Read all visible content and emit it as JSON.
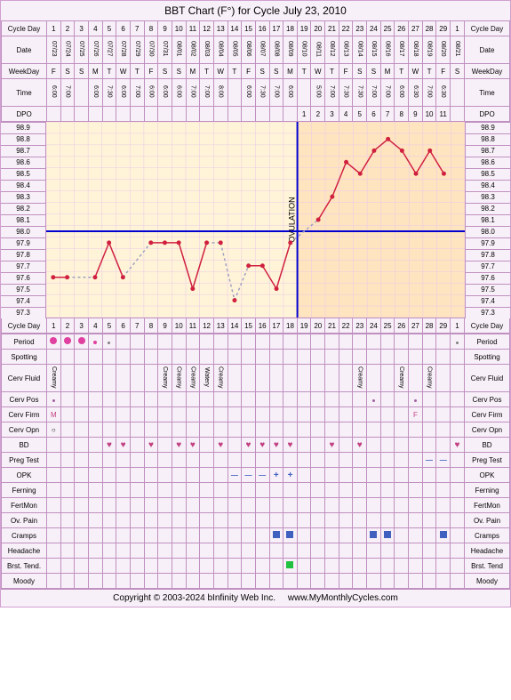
{
  "title": "BBT Chart (F°) for Cycle July 23, 2010",
  "footer_left": "Copyright © 2003-2024 bInfinity Web Inc.",
  "footer_right": "www.MyMonthlyCycles.com",
  "labels": {
    "cycle_day": "Cycle Day",
    "date": "Date",
    "weekday": "WeekDay",
    "time": "Time",
    "dpo": "DPO",
    "period": "Period",
    "spotting": "Spotting",
    "cerv_fluid": "Cerv Fluid",
    "cerv_pos": "Cerv Pos",
    "cerv_firm": "Cerv Firm",
    "cerv_opn": "Cerv Opn",
    "bd": "BD",
    "preg_test": "Preg Test",
    "opk": "OPK",
    "ferning": "Ferning",
    "fertmon": "FertMon",
    "ov_pain": "Ov. Pain",
    "cramps": "Cramps",
    "headache": "Headache",
    "brst_tend": "Brst. Tend.",
    "brst_tend_r": "Brst. Tend",
    "moody": "Moody"
  },
  "days": 30,
  "cycle_days": [
    1,
    2,
    3,
    4,
    5,
    6,
    7,
    8,
    9,
    10,
    11,
    12,
    13,
    14,
    15,
    16,
    17,
    18,
    19,
    20,
    21,
    22,
    23,
    24,
    25,
    26,
    27,
    28,
    29,
    1
  ],
  "dates": [
    "07/23",
    "07/24",
    "07/25",
    "07/26",
    "07/27",
    "07/28",
    "07/29",
    "07/30",
    "07/31",
    "08/01",
    "08/02",
    "08/03",
    "08/04",
    "08/05",
    "08/06",
    "08/07",
    "08/08",
    "08/09",
    "08/10",
    "08/11",
    "08/12",
    "08/13",
    "08/14",
    "08/15",
    "08/16",
    "08/17",
    "08/18",
    "08/19",
    "08/20",
    "08/21"
  ],
  "weekdays": [
    "F",
    "S",
    "S",
    "M",
    "T",
    "W",
    "T",
    "F",
    "S",
    "S",
    "M",
    "T",
    "W",
    "T",
    "F",
    "S",
    "S",
    "M",
    "T",
    "W",
    "T",
    "F",
    "S",
    "S",
    "M",
    "T",
    "W",
    "T",
    "F",
    "S"
  ],
  "times": [
    "6:00",
    "7:00",
    "",
    "6:00",
    "7:30",
    "6:00",
    "7:00",
    "6:00",
    "6:00",
    "6:00",
    "7:00",
    "7:00",
    "8:00",
    "",
    "6:00",
    "7:30",
    "7:00",
    "6:00",
    "",
    "5:00",
    "7:00",
    "7:30",
    "7:30",
    "7:00",
    "7:00",
    "6:00",
    "6:30",
    "7:00",
    "6:30",
    ""
  ],
  "dpo": [
    "",
    "",
    "",
    "",
    "",
    "",
    "",
    "",
    "",
    "",
    "",
    "",
    "",
    "",
    "",
    "",
    "",
    "",
    "1",
    "2",
    "3",
    "4",
    "5",
    "6",
    "7",
    "8",
    "9",
    "10",
    "11",
    ""
  ],
  "ytemps": [
    "98.9",
    "98.8",
    "98.7",
    "98.6",
    "98.5",
    "98.4",
    "98.3",
    "98.2",
    "98.1",
    "98.0",
    "97.9",
    "97.8",
    "97.7",
    "97.6",
    "97.5",
    "97.4",
    "97.3"
  ],
  "chart": {
    "yrange": [
      97.3,
      98.9
    ],
    "coverline": 98.0,
    "ovulation_day": 18,
    "luteal_start": 18,
    "background_pre": "#fff4d8",
    "background_post": "#ffe4c0",
    "grid_color": "#e8c8e8",
    "grid_strong": "#c090c0",
    "coverline_color": "#0000d0",
    "ov_line_color": "#0000d0",
    "line_color": "#d02040",
    "dash_color": "#a0a0c0",
    "point_color": "#d02040",
    "points": [
      {
        "d": 1,
        "t": 97.6
      },
      {
        "d": 2,
        "t": 97.6
      },
      {
        "d": 4,
        "t": 97.6,
        "dashed_from": 2
      },
      {
        "d": 5,
        "t": 97.9
      },
      {
        "d": 6,
        "t": 97.6
      },
      {
        "d": 8,
        "t": 97.9,
        "dashed_from": 6
      },
      {
        "d": 9,
        "t": 97.9
      },
      {
        "d": 10,
        "t": 97.9
      },
      {
        "d": 11,
        "t": 97.5
      },
      {
        "d": 12,
        "t": 97.9
      },
      {
        "d": 13,
        "t": 97.9,
        "dashed_from": 12
      },
      {
        "d": 14,
        "t": 97.4,
        "dashed_from": 13
      },
      {
        "d": 15,
        "t": 97.7,
        "dashed_from": 14
      },
      {
        "d": 16,
        "t": 97.7
      },
      {
        "d": 17,
        "t": 97.5
      },
      {
        "d": 18,
        "t": 97.9
      },
      {
        "d": 20,
        "t": 98.1,
        "dashed_from": 18
      },
      {
        "d": 21,
        "t": 98.3
      },
      {
        "d": 22,
        "t": 98.6
      },
      {
        "d": 23,
        "t": 98.5
      },
      {
        "d": 24,
        "t": 98.7
      },
      {
        "d": 25,
        "t": 98.8
      },
      {
        "d": 26,
        "t": 98.7
      },
      {
        "d": 27,
        "t": 98.5
      },
      {
        "d": 28,
        "t": 98.7
      },
      {
        "d": 29,
        "t": 98.5
      }
    ],
    "ovulation_label": "OVULATION"
  },
  "trackers": {
    "period": {
      "1": "big",
      "2": "big",
      "3": "big",
      "4": "sm",
      "5": "tiny",
      "30": "tiny"
    },
    "cerv_fluid": {
      "1": "Creamy",
      "9": "Creamy",
      "10": "Creamy",
      "11": "Creamy",
      "12": "Watery",
      "13": "Creamy",
      "23": "Creamy",
      "26": "Creamy",
      "28": "Creamy"
    },
    "cerv_pos": {
      "1": "dot",
      "24": "dot",
      "27": "dot"
    },
    "cerv_firm": {
      "1": "M",
      "27": "F"
    },
    "cerv_opn": {
      "1": "o"
    },
    "bd": {
      "5": 1,
      "6": 1,
      "8": 1,
      "10": 1,
      "11": 1,
      "13": 1,
      "15": 1,
      "16": 1,
      "17": 1,
      "18": 1,
      "21": 1,
      "23": 1,
      "30": 1
    },
    "preg_test": {
      "28": "neg",
      "29": "neg"
    },
    "opk": {
      "14": "neg",
      "15": "neg",
      "16": "neg",
      "17": "pos",
      "18": "pos"
    },
    "cramps": {
      "17": 1,
      "18": 1,
      "24": 1,
      "25": 1,
      "29": 1
    },
    "brst_tend": {
      "18": "g"
    }
  }
}
